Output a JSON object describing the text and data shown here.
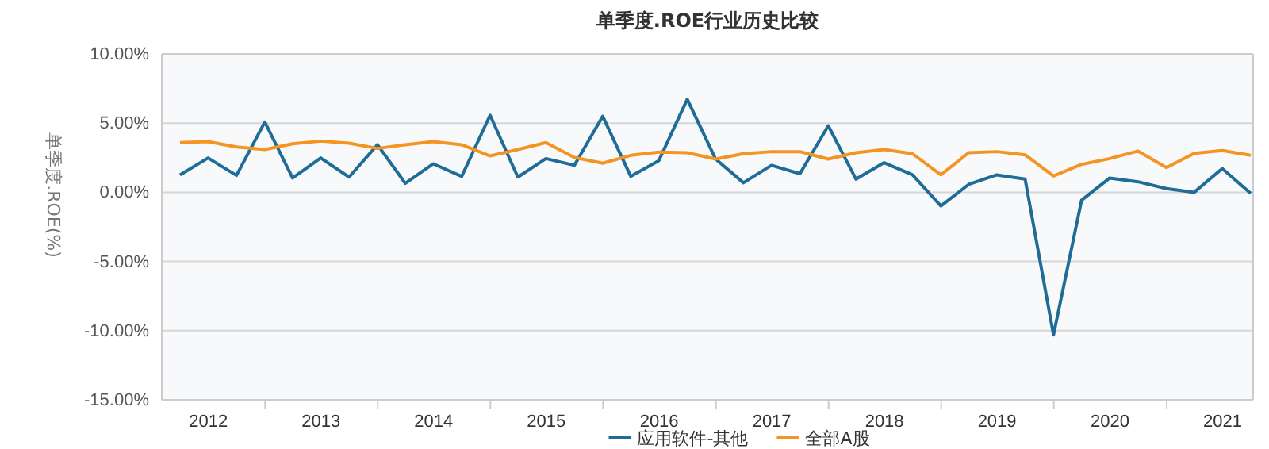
{
  "chart_data": {
    "type": "line",
    "title": "单季度.ROE行业历史比较",
    "ylabel": "单季度.ROE(%)",
    "x": [
      "2012-03-31",
      "2012-06-30",
      "2012-09-30",
      "2012-12-31",
      "2013-03-31",
      "2013-06-30",
      "2013-09-30",
      "2013-12-31",
      "2014-03-31",
      "2014-06-30",
      "2014-09-30",
      "2014-12-31",
      "2015-03-31",
      "2015-06-30",
      "2015-09-30",
      "2015-12-31",
      "2016-03-31",
      "2016-06-30",
      "2016-09-30",
      "2016-12-31",
      "2017-03-31",
      "2017-06-30",
      "2017-09-30",
      "2017-12-31",
      "2018-03-31",
      "2018-06-30",
      "2018-09-30",
      "2018-12-31",
      "2019-03-31",
      "2019-06-30",
      "2019-09-30",
      "2019-12-31",
      "2020-03-31",
      "2020-06-30",
      "2020-09-30",
      "2020-12-31",
      "2021-03-31",
      "2021-06-30",
      "2021-09-30"
    ],
    "series": [
      {
        "name": "应用软件-其他",
        "color": "#1f6d96",
        "values": [
          1.26,
          2.48,
          1.22,
          5.08,
          1.03,
          2.48,
          1.1,
          3.44,
          0.65,
          2.06,
          1.15,
          5.57,
          1.1,
          2.44,
          1.95,
          5.5,
          1.15,
          2.29,
          6.72,
          2.4,
          0.69,
          1.95,
          1.34,
          4.81,
          0.95,
          2.14,
          1.26,
          -0.99,
          0.57,
          1.26,
          0.95,
          -10.31,
          -0.57,
          1.03,
          0.76,
          0.27,
          0.0,
          1.72,
          -0.08
        ]
      },
      {
        "name": "全部A股",
        "color": "#f39423",
        "values": [
          3.59,
          3.66,
          3.28,
          3.09,
          3.51,
          3.7,
          3.55,
          3.17,
          3.44,
          3.66,
          3.44,
          2.63,
          3.09,
          3.59,
          2.52,
          2.1,
          2.67,
          2.9,
          2.86,
          2.4,
          2.79,
          2.94,
          2.94,
          2.4,
          2.86,
          3.09,
          2.79,
          1.26,
          2.86,
          2.94,
          2.71,
          1.18,
          2.02,
          2.44,
          2.98,
          1.79,
          2.82,
          3.02,
          2.67
        ]
      }
    ],
    "xlim": [
      "2012-02-01",
      "2021-10-08"
    ],
    "xticks": [
      {
        "value": "2012-07-01",
        "label": "2012"
      },
      {
        "value": "2013-01-01",
        "label": null
      },
      {
        "value": "2013-07-01",
        "label": "2013"
      },
      {
        "value": "2014-01-01",
        "label": null
      },
      {
        "value": "2014-07-01",
        "label": "2014"
      },
      {
        "value": "2015-01-01",
        "label": null
      },
      {
        "value": "2015-07-01",
        "label": "2015"
      },
      {
        "value": "2016-01-01",
        "label": null
      },
      {
        "value": "2016-07-01",
        "label": "2016"
      },
      {
        "value": "2017-01-01",
        "label": null
      },
      {
        "value": "2017-07-01",
        "label": "2017"
      },
      {
        "value": "2018-01-01",
        "label": null
      },
      {
        "value": "2018-07-01",
        "label": "2018"
      },
      {
        "value": "2019-01-01",
        "label": null
      },
      {
        "value": "2019-07-01",
        "label": "2019"
      },
      {
        "value": "2020-01-01",
        "label": null
      },
      {
        "value": "2020-07-01",
        "label": "2020"
      },
      {
        "value": "2021-01-01",
        "label": null
      },
      {
        "value": "2021-07-01",
        "label": "2021"
      }
    ],
    "ylim": [
      -15,
      10
    ],
    "yticks": [
      {
        "value": -15,
        "label": "-15.00%"
      },
      {
        "value": -10,
        "label": "-10.00%"
      },
      {
        "value": -5,
        "label": "-5.00%"
      },
      {
        "value": 0,
        "label": "0.00%"
      },
      {
        "value": 5,
        "label": "5.00%"
      },
      {
        "value": 10,
        "label": "10.00%"
      }
    ],
    "grid": "y",
    "legend": "bottom",
    "marker": "none",
    "line_style": "solid"
  }
}
